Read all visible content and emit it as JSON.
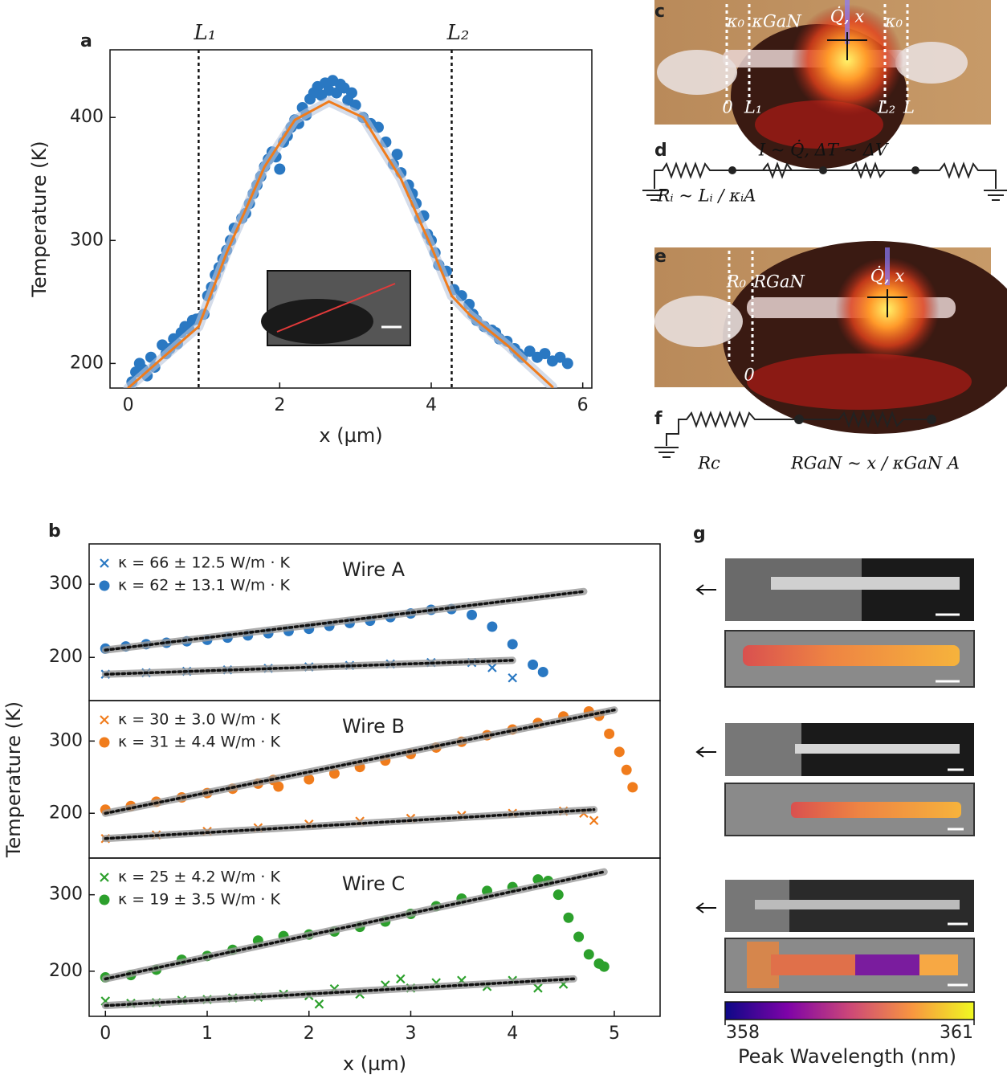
{
  "chart_data": [
    {
      "type": "scatter",
      "panel": "a",
      "xlabel": "x (µm)",
      "ylabel": "Temperature (K)",
      "xlim": [
        -0.24,
        6.12
      ],
      "ylim": [
        180,
        455
      ],
      "xticks": [
        0,
        2,
        4,
        6
      ],
      "yticks": [
        200,
        300,
        400
      ],
      "vlines": [
        {
          "value": 0.93,
          "label": "L₁"
        },
        {
          "value": 4.27,
          "label": "L₂"
        }
      ],
      "series": [
        {
          "marker": "circle",
          "color": "#2a78c2",
          "x": [
            0.05,
            0.1,
            0.15,
            0.2,
            0.25,
            0.3,
            0.35,
            0.45,
            0.5,
            0.55,
            0.6,
            0.65,
            0.7,
            0.75,
            0.8,
            0.85,
            0.9,
            1.0,
            1.05,
            1.1,
            1.15,
            1.2,
            1.25,
            1.3,
            1.35,
            1.4,
            1.5,
            1.55,
            1.6,
            1.65,
            1.7,
            1.75,
            1.8,
            1.85,
            1.9,
            1.95,
            2.0,
            2.05,
            2.1,
            2.15,
            2.2,
            2.25,
            2.3,
            2.35,
            2.4,
            2.45,
            2.5,
            2.55,
            2.6,
            2.65,
            2.7,
            2.75,
            2.8,
            2.85,
            2.9,
            2.95,
            3.0,
            3.1,
            3.2,
            3.3,
            3.4,
            3.5,
            3.55,
            3.6,
            3.7,
            3.75,
            3.8,
            3.85,
            3.9,
            3.95,
            4.0,
            4.05,
            4.1,
            4.2,
            4.3,
            4.4,
            4.5,
            4.55,
            4.6,
            4.7,
            4.8,
            4.85,
            4.9,
            5.0,
            5.1,
            5.15,
            5.2,
            5.3,
            5.4,
            5.5,
            5.6,
            5.7,
            5.8
          ],
          "values": [
            185,
            193,
            200,
            195,
            190,
            205,
            197,
            215,
            208,
            212,
            220,
            216,
            225,
            230,
            228,
            235,
            236,
            240,
            255,
            262,
            272,
            278,
            285,
            292,
            300,
            310,
            318,
            322,
            330,
            338,
            345,
            352,
            360,
            366,
            372,
            368,
            358,
            380,
            385,
            392,
            398,
            395,
            408,
            402,
            415,
            420,
            425,
            418,
            428,
            422,
            430,
            420,
            427,
            424,
            414,
            420,
            410,
            400,
            395,
            392,
            380,
            362,
            370,
            355,
            345,
            338,
            330,
            318,
            320,
            305,
            300,
            290,
            280,
            275,
            260,
            255,
            248,
            240,
            235,
            230,
            227,
            225,
            220,
            218,
            212,
            208,
            205,
            210,
            205,
            208,
            202,
            205,
            200
          ]
        }
      ],
      "fits": [
        {
          "color": "#f07c1c",
          "x": [
            0,
            0.5,
            0.93,
            1.3,
            1.8,
            2.2,
            2.65,
            3.1,
            3.6,
            4.0,
            4.27,
            4.5,
            5.0,
            5.6
          ],
          "values": [
            180,
            207,
            230,
            290,
            360,
            398,
            413,
            400,
            350,
            295,
            255,
            240,
            215,
            181
          ]
        }
      ]
    },
    {
      "type": "scatter",
      "panel": "b",
      "title": "Wire A",
      "xlim": [
        -0.16,
        5.45
      ],
      "ylim": [
        141,
        355
      ],
      "yticks": [
        200,
        300
      ],
      "series": [
        {
          "name": "κ = 66 ± 12.5 W/m · K",
          "marker": "x",
          "color": "#2a78c2",
          "x": [
            0,
            0.4,
            0.8,
            1.2,
            1.6,
            2.0,
            2.4,
            2.8,
            3.2,
            3.6,
            3.8,
            4.0
          ],
          "values": [
            177,
            179,
            181,
            183,
            185,
            187,
            189,
            191,
            193,
            193,
            186,
            172
          ]
        },
        {
          "name": "κ = 62 ± 13.1 W/m · K",
          "marker": "circle",
          "color": "#2a78c2",
          "x": [
            0,
            0.2,
            0.4,
            0.6,
            0.8,
            1.0,
            1.2,
            1.4,
            1.6,
            1.8,
            2.0,
            2.2,
            2.4,
            2.6,
            2.8,
            3.0,
            3.2,
            3.4,
            3.6,
            3.8,
            4.0,
            4.2,
            4.3
          ],
          "values": [
            212,
            215,
            218,
            220,
            222,
            224,
            227,
            230,
            233,
            236,
            239,
            243,
            247,
            250,
            255,
            260,
            265,
            266,
            258,
            242,
            218,
            190,
            180
          ]
        }
      ],
      "fits": [
        {
          "x": [
            0,
            4.0
          ],
          "values": [
            177,
            196
          ]
        },
        {
          "x": [
            0,
            4.7
          ],
          "values": [
            210,
            290
          ]
        }
      ]
    },
    {
      "type": "scatter",
      "title": "Wire B",
      "ylabel": "Temperature (K)",
      "xlim": [
        -0.16,
        5.45
      ],
      "ylim": [
        138,
        356
      ],
      "yticks": [
        200,
        300
      ],
      "series": [
        {
          "name": "κ = 30 ± 3.0 W/m · K",
          "marker": "x",
          "color": "#f07c1c",
          "x": [
            0,
            0.5,
            1.0,
            1.5,
            2.0,
            2.5,
            3.0,
            3.5,
            4.0,
            4.5,
            4.7,
            4.8
          ],
          "values": [
            165,
            170,
            175,
            180,
            185,
            189,
            193,
            197,
            200,
            203,
            200,
            190
          ]
        },
        {
          "name": "κ = 31 ± 4.4 W/m · K",
          "marker": "circle",
          "color": "#f07c1c",
          "x": [
            0,
            0.25,
            0.5,
            0.75,
            1.0,
            1.25,
            1.5,
            1.65,
            1.7,
            2.0,
            2.25,
            2.5,
            2.75,
            3.0,
            3.25,
            3.5,
            3.75,
            4.0,
            4.25,
            4.5,
            4.75,
            4.85,
            4.95,
            5.05,
            5.12,
            5.18
          ],
          "values": [
            205,
            210,
            216,
            222,
            228,
            234,
            241,
            246,
            237,
            247,
            255,
            264,
            273,
            282,
            291,
            299,
            308,
            316,
            325,
            334,
            341,
            335,
            310,
            285,
            260,
            236
          ]
        }
      ],
      "fits": [
        {
          "x": [
            0,
            4.8
          ],
          "values": [
            165,
            205
          ]
        },
        {
          "x": [
            0,
            5.0
          ],
          "values": [
            200,
            343
          ]
        }
      ]
    },
    {
      "type": "scatter",
      "title": "Wire C",
      "xlabel": "x (µm)",
      "xlim": [
        -0.16,
        5.45
      ],
      "ylim": [
        141,
        348
      ],
      "xticks": [
        0,
        1,
        2,
        3,
        4,
        5
      ],
      "yticks": [
        200,
        300
      ],
      "series": [
        {
          "name": "κ = 25 ± 4.2 W/m · K",
          "marker": "x",
          "color": "#2ca02c",
          "x": [
            0,
            0.25,
            0.5,
            0.75,
            1.0,
            1.25,
            1.5,
            1.75,
            2.0,
            2.1,
            2.25,
            2.5,
            2.75,
            2.9,
            3.0,
            3.25,
            3.5,
            3.75,
            4.0,
            4.25,
            4.5
          ],
          "values": [
            161,
            158,
            159,
            162,
            163,
            165,
            166,
            170,
            168,
            157,
            177,
            170,
            182,
            190,
            178,
            185,
            188,
            180,
            188,
            178,
            183
          ]
        },
        {
          "name": "κ = 19 ± 3.5 W/m · K",
          "marker": "circle",
          "color": "#2ca02c",
          "x": [
            0,
            0.25,
            0.5,
            0.75,
            1.0,
            1.25,
            1.5,
            1.75,
            2.0,
            2.25,
            2.5,
            2.75,
            3.0,
            3.25,
            3.5,
            3.75,
            4.0,
            4.25,
            4.35,
            4.45,
            4.55,
            4.65,
            4.75,
            4.85,
            4.9
          ],
          "values": [
            192,
            195,
            202,
            215,
            220,
            228,
            240,
            246,
            248,
            252,
            258,
            265,
            275,
            285,
            295,
            305,
            310,
            320,
            318,
            300,
            270,
            245,
            222,
            210,
            206
          ]
        }
      ],
      "fits": [
        {
          "x": [
            0,
            4.6
          ],
          "values": [
            155,
            190
          ]
        },
        {
          "x": [
            0,
            4.9
          ],
          "values": [
            190,
            330
          ]
        }
      ]
    }
  ],
  "schematics": {
    "c": {
      "label": "c",
      "texts": [
        "κ₀",
        "κGaN",
        "Q̇, x",
        "κ₀",
        "0",
        "L₁",
        "L₂",
        "L"
      ]
    },
    "d": {
      "label": "d",
      "texts": [
        "I ~ Q̇, ΔT ~ ΔV",
        "Rᵢ ~ Lᵢ / κᵢA"
      ]
    },
    "e": {
      "label": "e",
      "texts": [
        "R₀",
        "RGaN",
        "Q̇, x",
        "0"
      ]
    },
    "f": {
      "label": "f",
      "texts": [
        "Rc",
        "RGaN ~ x / κGaN A"
      ]
    },
    "g": {
      "label": "g",
      "colorbar_ticks": [
        358,
        361
      ],
      "colorbar_label": "Peak Wavelength (nm)"
    }
  }
}
